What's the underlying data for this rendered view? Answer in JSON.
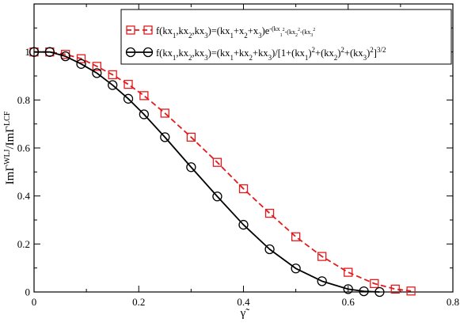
{
  "chart_data": {
    "type": "line",
    "xlabel": "γ̃",
    "ylabel": "ImΓ^WLJ/ImΓ^LCF",
    "xlim": [
      0,
      0.8
    ],
    "ylim": [
      0,
      1.2
    ],
    "x_ticks": [
      "0",
      "0.2",
      "0.4",
      "0.6",
      "0.8"
    ],
    "y_ticks": [
      "0",
      "0.2",
      "0.4",
      "0.6",
      "0.8",
      "1"
    ],
    "legend_position": "top-right",
    "colors": {
      "series_1": "#e41a1c",
      "series_2": "#000000",
      "background": "#ffffff"
    },
    "series": [
      {
        "name": "f(kx1,kx2,kx3)=(kx1+x2+x3)e^(-(kx1)^2-(kx2)^2-(kx3)^2)",
        "line_style": "dashed",
        "marker": "square",
        "x": [
          0.0,
          0.03,
          0.06,
          0.09,
          0.12,
          0.15,
          0.18,
          0.21,
          0.25,
          0.3,
          0.35,
          0.4,
          0.45,
          0.5,
          0.55,
          0.6,
          0.65,
          0.69,
          0.72
        ],
        "y": [
          1.0,
          1.0,
          0.99,
          0.972,
          0.94,
          0.905,
          0.865,
          0.818,
          0.745,
          0.645,
          0.54,
          0.43,
          0.328,
          0.23,
          0.148,
          0.082,
          0.035,
          0.012,
          0.004
        ]
      },
      {
        "name": "f(kx1,kx2,kx3)=(kx1+kx2+kx3)/[1+(kx1)^2+(kx2)^2+(kx3)^2]^(3/2)",
        "line_style": "solid",
        "marker": "circle",
        "x": [
          0.0,
          0.03,
          0.06,
          0.09,
          0.12,
          0.15,
          0.18,
          0.21,
          0.25,
          0.3,
          0.35,
          0.4,
          0.45,
          0.5,
          0.55,
          0.6,
          0.63,
          0.66
        ],
        "y": [
          1.0,
          1.0,
          0.982,
          0.95,
          0.912,
          0.862,
          0.805,
          0.74,
          0.645,
          0.52,
          0.398,
          0.28,
          0.178,
          0.098,
          0.045,
          0.012,
          0.003,
          0.0
        ]
      }
    ]
  }
}
